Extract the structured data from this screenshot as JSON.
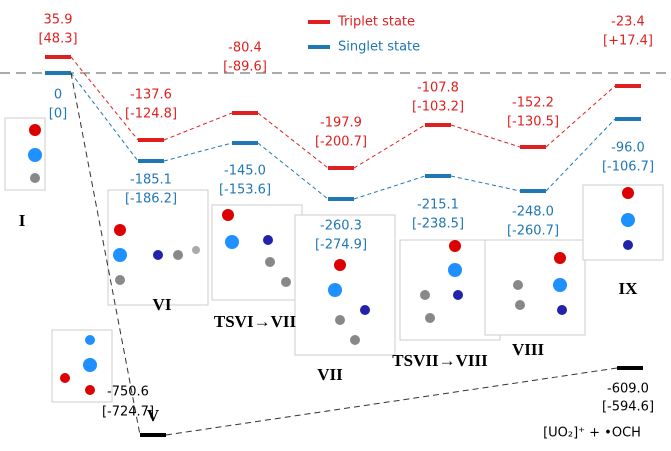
{
  "legend": {
    "triplet": "Triplet state",
    "singlet": "Singlet state"
  },
  "states": [
    {
      "label": "I",
      "triplet": "35.9",
      "triplet_alt": "[48.3]",
      "singlet": "0",
      "singlet_alt": "[0]"
    },
    {
      "label": "VI",
      "triplet": "-137.6",
      "triplet_alt": "[-124.8]",
      "singlet": "-185.1",
      "singlet_alt": "[-186.2]"
    },
    {
      "label": "TSVI→VII",
      "triplet": "-80.4",
      "triplet_alt": "[-89.6]",
      "singlet": "-145.0",
      "singlet_alt": "[-153.6]"
    },
    {
      "label": "VII",
      "triplet": "-197.9",
      "triplet_alt": "[-200.7]",
      "singlet": "-260.3",
      "singlet_alt": "[-274.9]"
    },
    {
      "label": "TSVII→VIII",
      "triplet": "-107.8",
      "triplet_alt": "[-103.2]",
      "singlet": "-215.1",
      "singlet_alt": "[-238.5]"
    },
    {
      "label": "VIII",
      "triplet": "-152.2",
      "triplet_alt": "[-130.5]",
      "singlet": "-248.0",
      "singlet_alt": "[-260.7]"
    },
    {
      "label": "IX",
      "triplet": "-23.4",
      "triplet_alt": "[+17.4]",
      "singlet": "-96.0",
      "singlet_alt": "[-106.7]"
    }
  ],
  "side": {
    "label": "V",
    "energy": "-750.6",
    "energy_alt": "[-724.7]"
  },
  "product": {
    "energy": "-609.0",
    "energy_alt": "[-594.6]",
    "label": "[UO₂]⁺ + •OCH"
  }
}
